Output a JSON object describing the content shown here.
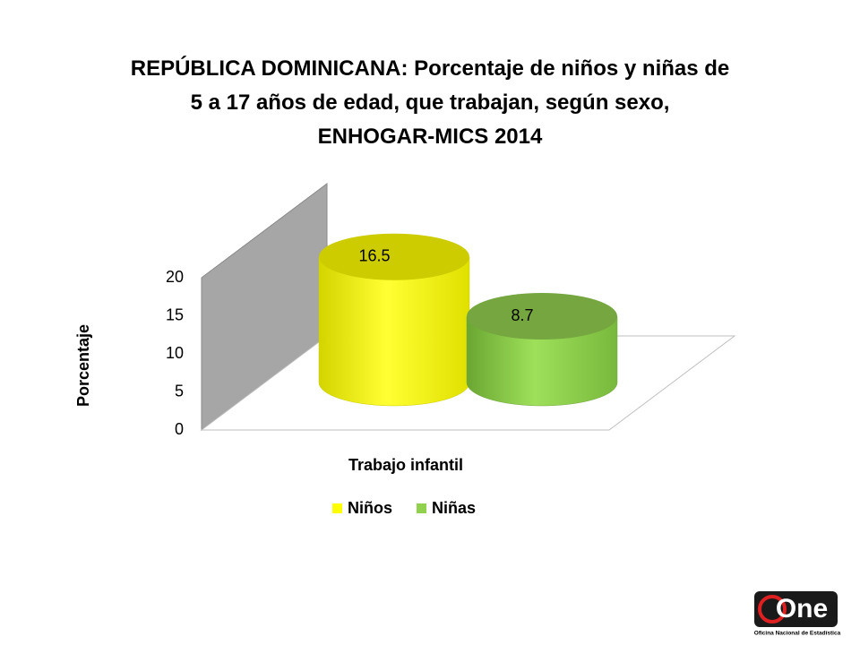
{
  "chart_data": {
    "type": "bar3d",
    "title": "REPÚBLICA DOMINICANA: Porcentaje de niños y niñas de\n5 a 17 años de edad, que trabajan, según sexo,\nENHOGAR-MICS 2014",
    "y_label": "Porcentaje",
    "categories": [
      "Trabajo infantil"
    ],
    "series": [
      {
        "name": "Niños",
        "color": "#ffff00",
        "values": [
          16.5
        ]
      },
      {
        "name": "Niñas",
        "color": "#92d050",
        "values": [
          8.7
        ]
      }
    ],
    "ylim": [
      0,
      20
    ],
    "yticks": [
      0,
      5,
      10,
      15,
      20
    ],
    "grid": false,
    "legend": "bottom"
  },
  "logo": {
    "mark": "One",
    "name": "Oficina Nacional de Estadística"
  }
}
